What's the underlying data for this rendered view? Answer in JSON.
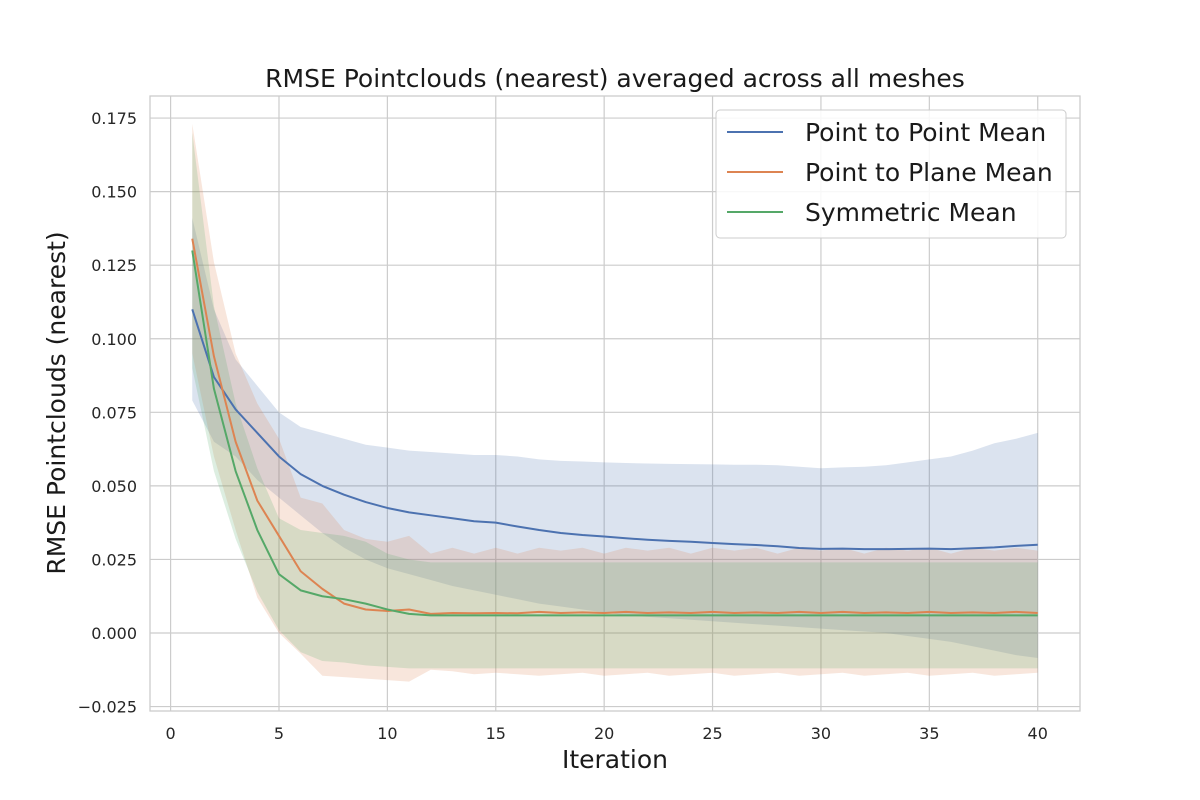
{
  "chart_data": {
    "type": "line",
    "title": "RMSE Pointclouds (nearest) averaged across all meshes",
    "xlabel": "Iteration",
    "ylabel": "RMSE Pointclouds (nearest)",
    "xlim": [
      -0.95,
      41.95
    ],
    "ylim": [
      -0.0265,
      0.1825
    ],
    "x_ticks": [
      0,
      5,
      10,
      15,
      20,
      25,
      30,
      35,
      40
    ],
    "x_tick_labels": [
      "0",
      "5",
      "10",
      "15",
      "20",
      "25",
      "30",
      "35",
      "40"
    ],
    "y_ticks": [
      -0.025,
      0.0,
      0.025,
      0.05,
      0.075,
      0.1,
      0.125,
      0.15,
      0.175
    ],
    "y_tick_labels": [
      "−0.025",
      "0.000",
      "0.025",
      "0.050",
      "0.075",
      "0.100",
      "0.125",
      "0.150",
      "0.175"
    ],
    "grid": true,
    "legend_position": "top-right",
    "x": [
      1,
      2,
      3,
      4,
      5,
      6,
      7,
      8,
      9,
      10,
      11,
      12,
      13,
      14,
      15,
      16,
      17,
      18,
      19,
      20,
      21,
      22,
      23,
      24,
      25,
      26,
      27,
      28,
      29,
      30,
      31,
      32,
      33,
      34,
      35,
      36,
      37,
      38,
      39,
      40
    ],
    "series": [
      {
        "name": "Point to Point Mean",
        "color": "#4c72b0",
        "values": [
          0.11,
          0.087,
          0.076,
          0.068,
          0.06,
          0.054,
          0.05,
          0.047,
          0.0445,
          0.0425,
          0.041,
          0.04,
          0.039,
          0.038,
          0.0375,
          0.0362,
          0.035,
          0.034,
          0.0333,
          0.0328,
          0.0322,
          0.0317,
          0.0313,
          0.031,
          0.0306,
          0.0302,
          0.0299,
          0.0295,
          0.0289,
          0.0286,
          0.0287,
          0.0285,
          0.0285,
          0.0286,
          0.0287,
          0.0285,
          0.0288,
          0.0291,
          0.0296,
          0.03
        ],
        "lower": [
          0.079,
          0.065,
          0.06,
          0.052,
          0.046,
          0.04,
          0.034,
          0.029,
          0.025,
          0.022,
          0.02,
          0.018,
          0.016,
          0.0145,
          0.013,
          0.0115,
          0.01,
          0.009,
          0.008,
          0.007,
          0.006,
          0.0055,
          0.005,
          0.0045,
          0.004,
          0.0035,
          0.003,
          0.0025,
          0.002,
          0.0015,
          0.001,
          0.0005,
          0.0,
          -0.001,
          -0.002,
          -0.003,
          -0.0045,
          -0.006,
          -0.0075,
          -0.0085
        ],
        "upper": [
          0.141,
          0.11,
          0.093,
          0.084,
          0.075,
          0.07,
          0.068,
          0.066,
          0.064,
          0.063,
          0.062,
          0.0615,
          0.061,
          0.0605,
          0.0605,
          0.06,
          0.059,
          0.0585,
          0.0583,
          0.058,
          0.0578,
          0.0576,
          0.0575,
          0.0574,
          0.0573,
          0.0572,
          0.0572,
          0.057,
          0.0565,
          0.056,
          0.0563,
          0.0565,
          0.057,
          0.058,
          0.059,
          0.06,
          0.062,
          0.0645,
          0.066,
          0.068
        ]
      },
      {
        "name": "Point to Plane Mean",
        "color": "#dd8452",
        "values": [
          0.134,
          0.094,
          0.065,
          0.045,
          0.033,
          0.021,
          0.015,
          0.01,
          0.008,
          0.0075,
          0.008,
          0.0065,
          0.0068,
          0.0067,
          0.0068,
          0.0067,
          0.0072,
          0.0068,
          0.007,
          0.0068,
          0.0072,
          0.0068,
          0.007,
          0.0068,
          0.0072,
          0.0068,
          0.007,
          0.0068,
          0.0072,
          0.0068,
          0.0072,
          0.0068,
          0.007,
          0.0068,
          0.0072,
          0.0068,
          0.007,
          0.0068,
          0.0072,
          0.0068
        ],
        "lower": [
          0.095,
          0.06,
          0.035,
          0.012,
          0.0,
          -0.007,
          -0.0145,
          -0.015,
          -0.0155,
          -0.016,
          -0.0165,
          -0.0125,
          -0.013,
          -0.014,
          -0.0135,
          -0.014,
          -0.0145,
          -0.014,
          -0.0135,
          -0.0145,
          -0.014,
          -0.0135,
          -0.0145,
          -0.014,
          -0.0135,
          -0.0145,
          -0.014,
          -0.0135,
          -0.0145,
          -0.014,
          -0.0135,
          -0.0145,
          -0.014,
          -0.0135,
          -0.0145,
          -0.014,
          -0.0135,
          -0.0145,
          -0.014,
          -0.0135
        ],
        "upper": [
          0.173,
          0.126,
          0.095,
          0.078,
          0.066,
          0.046,
          0.044,
          0.035,
          0.032,
          0.031,
          0.033,
          0.027,
          0.029,
          0.027,
          0.029,
          0.027,
          0.029,
          0.028,
          0.029,
          0.027,
          0.029,
          0.028,
          0.029,
          0.027,
          0.029,
          0.028,
          0.029,
          0.027,
          0.029,
          0.028,
          0.029,
          0.027,
          0.029,
          0.028,
          0.029,
          0.027,
          0.029,
          0.028,
          0.029,
          0.028
        ]
      },
      {
        "name": "Symmetric Mean",
        "color": "#55a868",
        "values": [
          0.13,
          0.083,
          0.055,
          0.035,
          0.02,
          0.0145,
          0.0125,
          0.0115,
          0.01,
          0.008,
          0.0065,
          0.006,
          0.006,
          0.006,
          0.006,
          0.006,
          0.006,
          0.006,
          0.006,
          0.006,
          0.006,
          0.006,
          0.006,
          0.006,
          0.006,
          0.006,
          0.006,
          0.006,
          0.006,
          0.006,
          0.006,
          0.006,
          0.006,
          0.006,
          0.006,
          0.006,
          0.006,
          0.006,
          0.006,
          0.006
        ],
        "lower": [
          0.09,
          0.055,
          0.032,
          0.014,
          0.001,
          -0.0065,
          -0.0095,
          -0.01,
          -0.011,
          -0.0115,
          -0.012,
          -0.012,
          -0.012,
          -0.012,
          -0.012,
          -0.012,
          -0.012,
          -0.012,
          -0.012,
          -0.012,
          -0.012,
          -0.012,
          -0.012,
          -0.012,
          -0.012,
          -0.012,
          -0.012,
          -0.012,
          -0.012,
          -0.012,
          -0.012,
          -0.012,
          -0.012,
          -0.012,
          -0.012,
          -0.012,
          -0.012,
          -0.012,
          -0.012,
          -0.012
        ],
        "upper": [
          0.17,
          0.111,
          0.078,
          0.056,
          0.039,
          0.035,
          0.034,
          0.033,
          0.031,
          0.027,
          0.025,
          0.024,
          0.024,
          0.024,
          0.024,
          0.024,
          0.024,
          0.024,
          0.024,
          0.024,
          0.024,
          0.024,
          0.024,
          0.024,
          0.024,
          0.024,
          0.024,
          0.024,
          0.024,
          0.024,
          0.024,
          0.024,
          0.024,
          0.024,
          0.024,
          0.024,
          0.024,
          0.024,
          0.024,
          0.024
        ]
      }
    ]
  }
}
